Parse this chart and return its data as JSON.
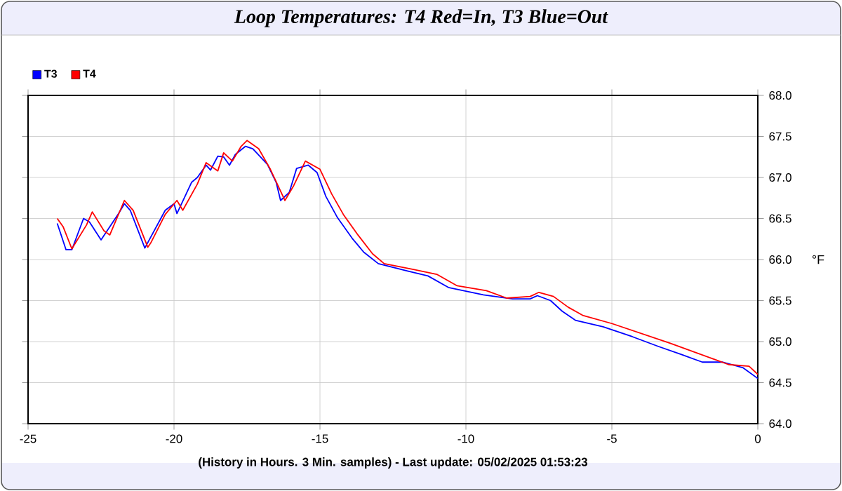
{
  "chart_data": {
    "type": "line",
    "title": "Loop Temperatures: T4 Red=In, T3 Blue=Out",
    "xlabel": "(History in Hours. 3 Min. samples) - Last update: 05/02/2025 01:53:23",
    "ylabel": "°F",
    "xlim": [
      -25,
      0
    ],
    "ylim": [
      64,
      68
    ],
    "xticks": [
      -25,
      -20,
      -15,
      -10,
      -5,
      0
    ],
    "yticks": [
      {
        "value": 64,
        "label": "64.0"
      },
      64.5,
      {
        "value": 65,
        "label": "65.0"
      },
      65.5,
      {
        "value": 66,
        "label": "66.0"
      },
      66.5,
      {
        "value": 67,
        "label": "67.0"
      },
      67.5,
      {
        "value": 68,
        "label": "68.0"
      }
    ],
    "grid": true,
    "legend": "top left",
    "marker": "none",
    "line_style": "solid",
    "series": [
      {
        "name": "T3",
        "color": "#0000ff",
        "x": [
          -24.0,
          -23.7,
          -23.5,
          -23.1,
          -22.9,
          -22.5,
          -21.9,
          -21.7,
          -21.5,
          -21.0,
          -20.3,
          -20.0,
          -19.9,
          -19.4,
          -19.2,
          -18.9,
          -18.75,
          -18.5,
          -18.3,
          -18.1,
          -17.9,
          -17.55,
          -17.3,
          -16.8,
          -16.5,
          -16.35,
          -16.05,
          -15.8,
          -15.4,
          -15.1,
          -14.8,
          -14.4,
          -13.9,
          -13.5,
          -13.0,
          -12.0,
          -11.3,
          -10.6,
          -9.4,
          -8.4,
          -7.8,
          -7.55,
          -7.1,
          -6.7,
          -6.25,
          -5.3,
          -4.3,
          -3.4,
          -2.6,
          -1.9,
          -1.2,
          -0.5,
          0.0
        ],
        "values": [
          66.44,
          66.12,
          66.12,
          66.5,
          66.46,
          66.24,
          66.56,
          66.68,
          66.6,
          66.14,
          66.6,
          66.68,
          66.56,
          66.94,
          67.0,
          67.15,
          67.09,
          67.26,
          67.25,
          67.15,
          67.28,
          67.38,
          67.35,
          67.16,
          66.94,
          66.72,
          66.82,
          67.11,
          67.15,
          67.06,
          66.77,
          66.51,
          66.26,
          66.09,
          65.95,
          65.86,
          65.8,
          65.66,
          65.57,
          65.52,
          65.52,
          65.56,
          65.5,
          65.37,
          65.26,
          65.18,
          65.06,
          64.94,
          64.84,
          64.75,
          64.75,
          64.68,
          64.55
        ]
      },
      {
        "name": "T4",
        "color": "#ff0000",
        "x": [
          -24.0,
          -23.8,
          -23.5,
          -23.0,
          -22.8,
          -22.4,
          -22.2,
          -21.7,
          -21.4,
          -20.9,
          -20.8,
          -20.3,
          -19.9,
          -19.7,
          -19.2,
          -18.9,
          -18.5,
          -18.3,
          -18.0,
          -17.7,
          -17.5,
          -17.1,
          -16.7,
          -16.2,
          -15.9,
          -15.5,
          -15.0,
          -14.6,
          -14.2,
          -13.7,
          -13.2,
          -12.8,
          -11.8,
          -11.0,
          -10.3,
          -9.3,
          -8.6,
          -7.8,
          -7.5,
          -7.0,
          -6.5,
          -6.0,
          -5.0,
          -4.0,
          -3.0,
          -2.0,
          -1.0,
          -0.3,
          0.0
        ],
        "values": [
          66.5,
          66.4,
          66.13,
          66.42,
          66.58,
          66.35,
          66.3,
          66.72,
          66.6,
          66.15,
          66.2,
          66.55,
          66.72,
          66.6,
          66.92,
          67.18,
          67.08,
          67.3,
          67.2,
          67.38,
          67.45,
          67.35,
          67.1,
          66.72,
          66.9,
          67.2,
          67.1,
          66.8,
          66.55,
          66.3,
          66.07,
          65.95,
          65.88,
          65.82,
          65.68,
          65.62,
          65.53,
          65.55,
          65.6,
          65.55,
          65.42,
          65.32,
          65.22,
          65.1,
          64.98,
          64.85,
          64.72,
          64.7,
          64.6
        ]
      }
    ]
  }
}
